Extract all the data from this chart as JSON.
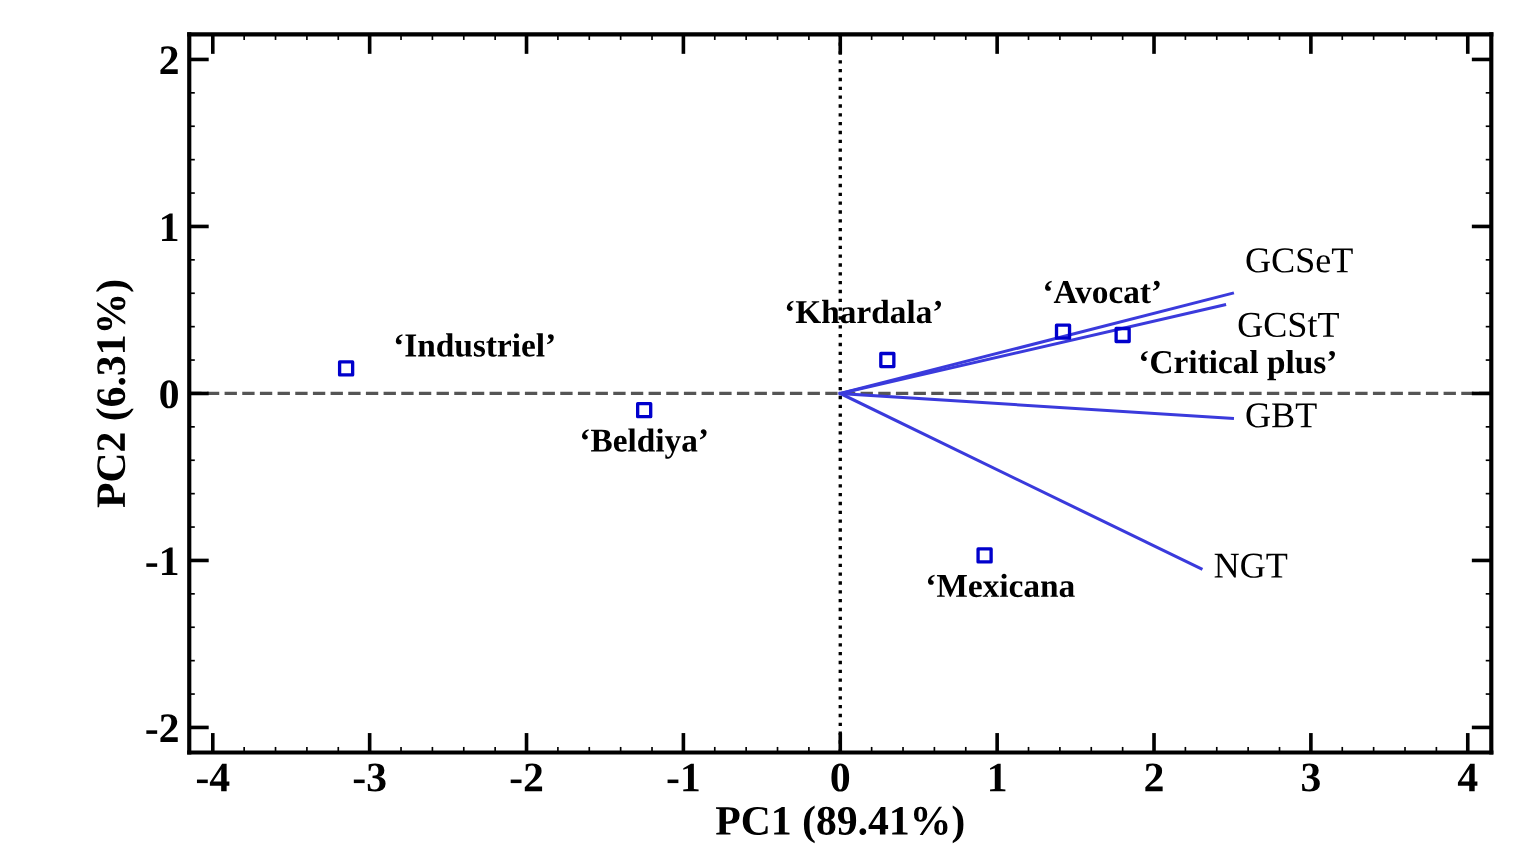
{
  "chart_data": {
    "type": "scatter",
    "xlabel": "PC1 (89.41%)",
    "ylabel": "PC2 (6.31%)",
    "xlim": [
      -4.15,
      4.15
    ],
    "ylim": [
      -2.15,
      2.15
    ],
    "xticks": [
      -4,
      -3,
      -2,
      -1,
      0,
      1,
      2,
      3,
      4
    ],
    "yticks": [
      -2,
      -1,
      0,
      1,
      2
    ],
    "grid": false,
    "legend": false,
    "series": [
      {
        "color": "#0000cc",
        "marker": "square",
        "x": [
          -3.15,
          -1.25,
          0.3,
          1.42,
          1.8,
          0.92
        ],
        "values": [
          0.15,
          -0.1,
          0.2,
          0.37,
          0.35,
          -0.97
        ]
      },
      {
        "type": "line",
        "name": "GCSeT",
        "color": "#3a3adc",
        "x": [
          0,
          2.5
        ],
        "values": [
          0,
          0.6
        ]
      },
      {
        "type": "line",
        "name": "GCStT",
        "color": "#3a3adc",
        "x": [
          0,
          2.45
        ],
        "values": [
          0,
          0.53
        ]
      },
      {
        "type": "line",
        "name": "GBT",
        "color": "#3a3adc",
        "x": [
          0,
          2.5
        ],
        "values": [
          0,
          -0.15
        ]
      },
      {
        "type": "line",
        "name": "NGT",
        "color": "#3a3adc",
        "x": [
          0,
          2.3
        ],
        "values": [
          0,
          -1.05
        ]
      }
    ],
    "ref_lines": [
      {
        "axis": "x",
        "value": 0,
        "line_style": "dotted",
        "color": "#000000"
      },
      {
        "axis": "y",
        "value": 0,
        "line_style": "dashed",
        "color": "#555555"
      }
    ],
    "annotations": [
      {
        "text": "‘Industriel’",
        "x": -3.15,
        "y": 0.15
      },
      {
        "text": "‘Beldiya’",
        "x": -1.25,
        "y": -0.1
      },
      {
        "text": "‘Khardala’",
        "x": 0.3,
        "y": 0.2
      },
      {
        "text": "‘Avocat’",
        "x": 1.42,
        "y": 0.37
      },
      {
        "text": "‘Critical plus’",
        "x": 1.8,
        "y": 0.35
      },
      {
        "text": "‘Mexicana",
        "x": 0.92,
        "y": -0.97
      }
    ]
  }
}
